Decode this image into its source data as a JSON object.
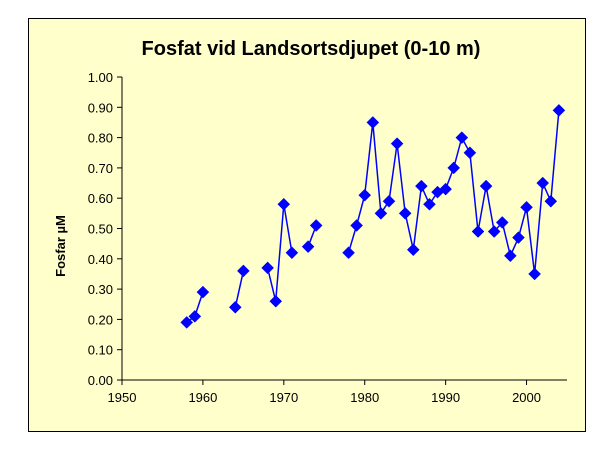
{
  "chart_data": {
    "type": "line",
    "title": "Fosfat vid Landsortsdjupet (0-10 m)",
    "xlabel": "",
    "ylabel": "Fosfar µM",
    "xlim": [
      1950,
      2005
    ],
    "ylim": [
      0,
      1.0
    ],
    "xticks": [
      "1950",
      "1960",
      "1970",
      "1980",
      "1990",
      "2000"
    ],
    "yticks": [
      "0.00",
      "0.10",
      "0.20",
      "0.30",
      "0.40",
      "0.50",
      "0.60",
      "0.70",
      "0.80",
      "0.90",
      "1.00"
    ],
    "grid": false,
    "legend": "none",
    "colors": {
      "series": "#0000ff",
      "plot_background": "#ffffcc"
    },
    "series": [
      {
        "points": [
          [
            1958,
            0.19
          ],
          [
            1959,
            0.21
          ],
          [
            1960,
            0.29
          ]
        ]
      },
      {
        "points": [
          [
            1964,
            0.24
          ],
          [
            1965,
            0.36
          ]
        ]
      },
      {
        "points": [
          [
            1968,
            0.37
          ],
          [
            1969,
            0.26
          ],
          [
            1970,
            0.58
          ],
          [
            1971,
            0.42
          ]
        ]
      },
      {
        "points": [
          [
            1973,
            0.44
          ],
          [
            1974,
            0.51
          ]
        ]
      },
      {
        "points": [
          [
            1978,
            0.42
          ],
          [
            1979,
            0.51
          ],
          [
            1980,
            0.61
          ],
          [
            1981,
            0.85
          ],
          [
            1982,
            0.55
          ],
          [
            1983,
            0.59
          ],
          [
            1984,
            0.78
          ],
          [
            1985,
            0.55
          ],
          [
            1986,
            0.43
          ],
          [
            1987,
            0.64
          ],
          [
            1988,
            0.58
          ],
          [
            1989,
            0.62
          ],
          [
            1990,
            0.63
          ],
          [
            1991,
            0.7
          ],
          [
            1992,
            0.8
          ],
          [
            1993,
            0.75
          ],
          [
            1994,
            0.49
          ],
          [
            1995,
            0.64
          ],
          [
            1996,
            0.49
          ],
          [
            1997,
            0.52
          ],
          [
            1998,
            0.41
          ],
          [
            1999,
            0.47
          ],
          [
            2000,
            0.57
          ],
          [
            2001,
            0.35
          ],
          [
            2002,
            0.65
          ],
          [
            2003,
            0.59
          ],
          [
            2004,
            0.89
          ]
        ]
      }
    ]
  }
}
